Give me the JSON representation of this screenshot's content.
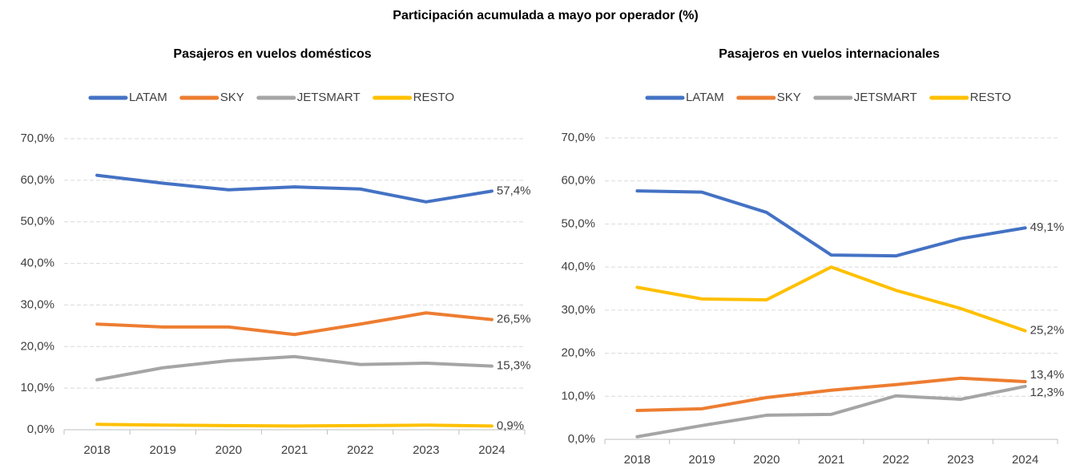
{
  "title": "Participación acumulada a mayo por operador (%)",
  "chart_data": [
    {
      "type": "line",
      "title": "Pasajeros en vuelos domésticos",
      "categories": [
        "2018",
        "2019",
        "2020",
        "2021",
        "2022",
        "2023",
        "2024"
      ],
      "series": [
        {
          "name": "LATAM",
          "color": "#4472c4",
          "values": [
            61.2,
            59.3,
            57.7,
            58.4,
            57.9,
            54.8,
            57.4
          ],
          "value_labels": [
            null,
            null,
            null,
            null,
            null,
            null,
            "57,4%"
          ]
        },
        {
          "name": "SKY",
          "color": "#ed7d31",
          "values": [
            25.4,
            24.7,
            24.7,
            22.9,
            25.4,
            28.1,
            26.5
          ],
          "value_labels": [
            null,
            null,
            null,
            null,
            null,
            null,
            "26,5%"
          ]
        },
        {
          "name": "JETSMART",
          "color": "#a5a5a5",
          "values": [
            12.0,
            14.9,
            16.6,
            17.6,
            15.7,
            16.0,
            15.3
          ],
          "value_labels": [
            null,
            null,
            null,
            null,
            null,
            null,
            "15,3%"
          ]
        },
        {
          "name": "RESTO",
          "color": "#ffc000",
          "values": [
            1.3,
            1.1,
            1.0,
            0.9,
            1.0,
            1.1,
            0.9
          ],
          "value_labels": [
            null,
            null,
            null,
            null,
            null,
            null,
            "0,9%"
          ]
        }
      ],
      "ylim": [
        0,
        70
      ],
      "yticks": [
        {
          "value": 0,
          "label": "0,0%"
        },
        {
          "value": 10,
          "label": "10,0%"
        },
        {
          "value": 20,
          "label": "20,0%"
        },
        {
          "value": 30,
          "label": "30,0%"
        },
        {
          "value": 40,
          "label": "40,0%"
        },
        {
          "value": 50,
          "label": "50,0%"
        },
        {
          "value": 60,
          "label": "60,0%"
        },
        {
          "value": 70,
          "label": "70,0%"
        }
      ],
      "grid": true,
      "legend": "top"
    },
    {
      "type": "line",
      "title": "Pasajeros en vuelos internacionales",
      "categories": [
        "2018",
        "2019",
        "2020",
        "2021",
        "2022",
        "2023",
        "2024"
      ],
      "series": [
        {
          "name": "LATAM",
          "color": "#4472c4",
          "values": [
            57.7,
            57.4,
            52.7,
            42.8,
            42.6,
            46.6,
            49.1
          ],
          "value_labels": [
            null,
            null,
            null,
            null,
            null,
            null,
            "49,1%"
          ]
        },
        {
          "name": "SKY",
          "color": "#ed7d31",
          "values": [
            6.7,
            7.1,
            9.7,
            11.4,
            12.7,
            14.2,
            13.4
          ],
          "value_labels": [
            null,
            null,
            null,
            null,
            null,
            null,
            "13,4%"
          ]
        },
        {
          "name": "JETSMART",
          "color": "#a5a5a5",
          "values": [
            0.6,
            3.2,
            5.6,
            5.8,
            10.1,
            9.3,
            12.3
          ],
          "value_labels": [
            null,
            null,
            null,
            null,
            null,
            null,
            "12,3%"
          ]
        },
        {
          "name": "RESTO",
          "color": "#ffc000",
          "values": [
            35.3,
            32.6,
            32.4,
            40.0,
            34.6,
            30.4,
            25.2
          ],
          "value_labels": [
            null,
            null,
            null,
            null,
            null,
            null,
            "25,2%"
          ]
        }
      ],
      "ylim": [
        0,
        70
      ],
      "yticks": [
        {
          "value": 0,
          "label": "0,0%"
        },
        {
          "value": 10,
          "label": "10,0%"
        },
        {
          "value": 20,
          "label": "20,0%"
        },
        {
          "value": 30,
          "label": "30,0%"
        },
        {
          "value": 40,
          "label": "40,0%"
        },
        {
          "value": 50,
          "label": "50,0%"
        },
        {
          "value": 60,
          "label": "60,0%"
        },
        {
          "value": 70,
          "label": "70,0%"
        }
      ],
      "grid": true,
      "legend": "top"
    }
  ]
}
